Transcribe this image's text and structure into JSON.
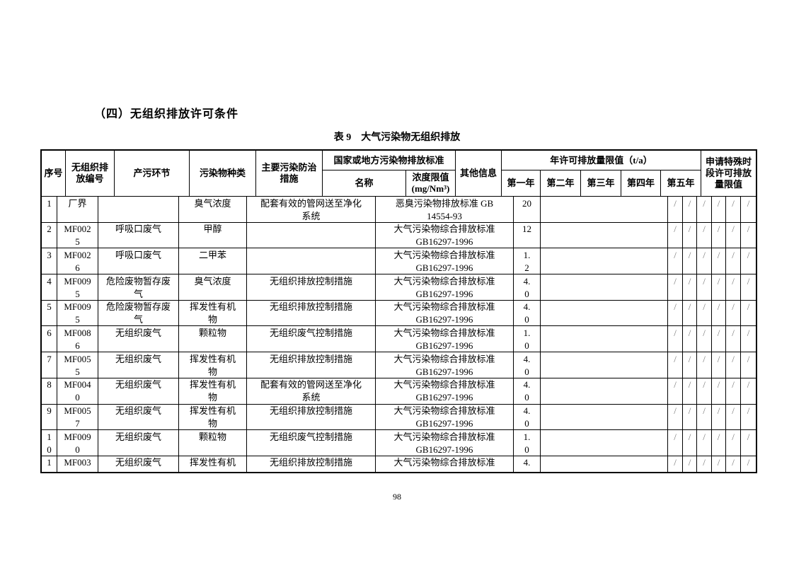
{
  "heading": "（四）无组织排放许可条件",
  "table_title": "表 9　大气污染物无组织排放",
  "page": {
    "number": "98"
  },
  "table": {
    "header": {
      "seq": "序号",
      "code": "无组织排\n放编号",
      "stage": "产污环节",
      "pollutant": "污染物种类",
      "measure": "主要污染防治\n措施",
      "standard_group": "国家或地方污染物排放标准",
      "standard_name": "名称",
      "limit": "浓度限值\n(mg/Nm³)",
      "other": "其他信息",
      "annual_group": "年许可排放量限值（t/a）",
      "year1": "第一年",
      "year2": "第二年",
      "year3": "第三年",
      "year4": "第四年",
      "year5": "第五年",
      "special": "申请特殊时\n段许可排放\n量限值"
    },
    "slash": "/",
    "rows": [
      {
        "seq": "1",
        "code": "厂界",
        "stage": "",
        "pollutant": "臭气浓度",
        "measure": "配套有效的管网送至净化\n系统",
        "standard": "恶臭污染物排放标准 GB\n14554-93",
        "value": "20"
      },
      {
        "seq": "2",
        "code": "MF002\n5",
        "stage": "呼吸口废气",
        "pollutant": "甲醇",
        "measure": "",
        "standard": "大气污染物综合排放标准\nGB16297-1996",
        "value": "12"
      },
      {
        "seq": "3",
        "code": "MF002\n6",
        "stage": "呼吸口废气",
        "pollutant": "二甲苯",
        "measure": "",
        "standard": "大气污染物综合排放标准\nGB16297-1996",
        "value": "1.\n2"
      },
      {
        "seq": "4",
        "code": "MF009\n5",
        "stage": "危险废物暂存废\n气",
        "pollutant": "臭气浓度",
        "measure": "无组织排放控制措施",
        "standard": "大气污染物综合排放标准\nGB16297-1996",
        "value": "4.\n0"
      },
      {
        "seq": "5",
        "code": "MF009\n5",
        "stage": "危险废物暂存废\n气",
        "pollutant": "挥发性有机\n物",
        "measure": "无组织排放控制措施",
        "standard": "大气污染物综合排放标准\nGB16297-1996",
        "value": "4.\n0"
      },
      {
        "seq": "6",
        "code": "MF008\n6",
        "stage": "无组织废气",
        "pollutant": "颗粒物",
        "measure": "无组织废气控制措施",
        "standard": "大气污染物综合排放标准\nGB16297-1996",
        "value": "1.\n0"
      },
      {
        "seq": "7",
        "code": "MF005\n5",
        "stage": "无组织废气",
        "pollutant": "挥发性有机\n物",
        "measure": "无组织排放控制措施",
        "standard": "大气污染物综合排放标准\nGB16297-1996",
        "value": "4.\n0"
      },
      {
        "seq": "8",
        "code": "MF004\n0",
        "stage": "无组织废气",
        "pollutant": "挥发性有机\n物",
        "measure": "配套有效的管网送至净化\n系统",
        "standard": "大气污染物综合排放标准\nGB16297-1996",
        "value": "4.\n0"
      },
      {
        "seq": "9",
        "code": "MF005\n7",
        "stage": "无组织废气",
        "pollutant": "挥发性有机\n物",
        "measure": "无组织排放控制措施",
        "standard": "大气污染物综合排放标准\nGB16297-1996",
        "value": "4.\n0"
      },
      {
        "seq": "1\n0",
        "code": "MF009\n0",
        "stage": "无组织废气",
        "pollutant": "颗粒物",
        "measure": "无组织废气控制措施",
        "standard": "大气污染物综合排放标准\nGB16297-1996",
        "value": "1.\n0"
      },
      {
        "seq": "1",
        "code": "MF003",
        "stage": "无组织废气",
        "pollutant": "挥发性有机",
        "measure": "无组织排放控制措施",
        "standard": "大气污染物综合排放标准",
        "value": "4."
      }
    ]
  }
}
